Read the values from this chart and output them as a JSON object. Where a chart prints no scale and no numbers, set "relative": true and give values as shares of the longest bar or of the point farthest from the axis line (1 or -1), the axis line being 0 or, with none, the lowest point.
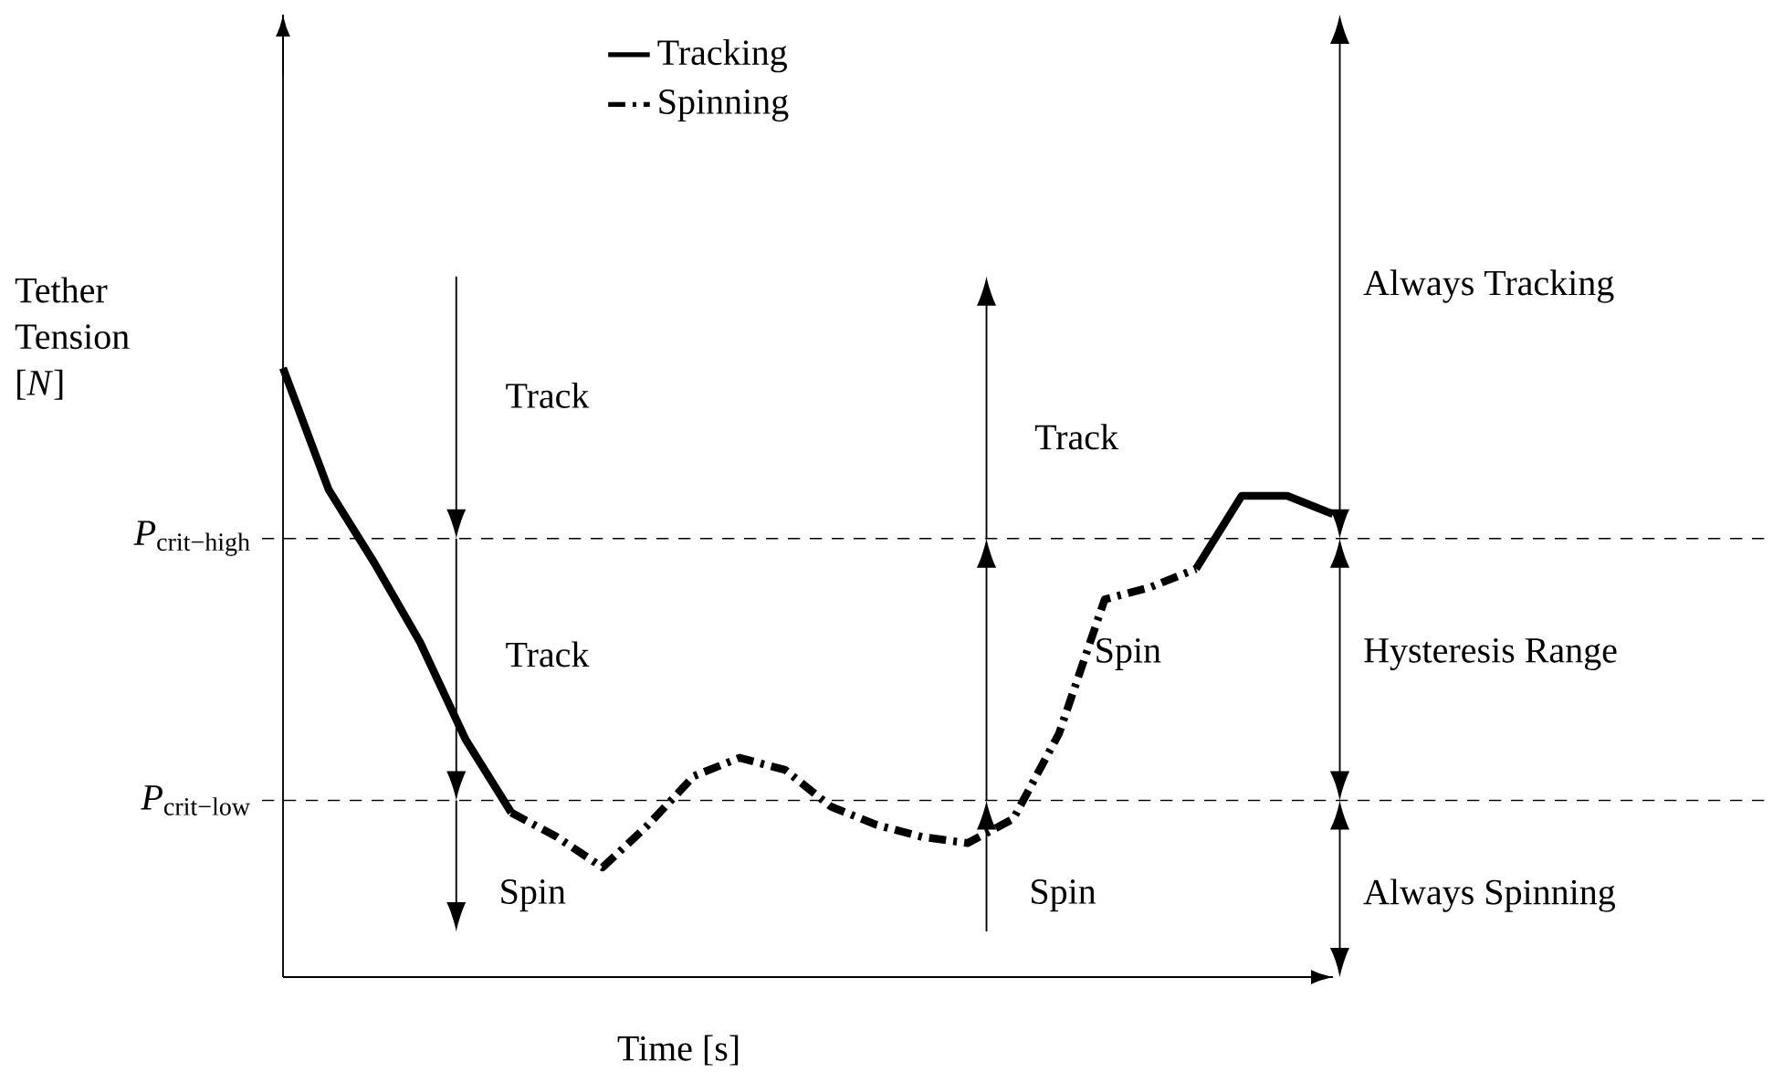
{
  "chart_data": {
    "type": "line",
    "relative": true,
    "xlabel": "Time [s]",
    "ylabel": "Tether Tension [*N*]",
    "legend": "top",
    "marker": "none",
    "categories": [
      null,
      null,
      null,
      null,
      null,
      null,
      null,
      null,
      null,
      null,
      null,
      null,
      null,
      null,
      null,
      null,
      null,
      null,
      null,
      null,
      null,
      null,
      null,
      null
    ],
    "series": [
      {
        "name": "Tracking",
        "color": "#000000",
        "line_style": "solid",
        "values": [
          1.0,
          0.8,
          0.68,
          0.55,
          0.39,
          0.27,
          null,
          null,
          null,
          null,
          null,
          null,
          null,
          null,
          null,
          null,
          null,
          null,
          null,
          null,
          0.67,
          0.79,
          0.79,
          0.76
        ]
      },
      {
        "name": "Spinning",
        "color": "#000000",
        "line_style": "dashdot",
        "values": [
          null,
          null,
          null,
          null,
          null,
          0.27,
          0.23,
          0.18,
          0.25,
          0.33,
          0.36,
          0.34,
          0.28,
          0.25,
          0.23,
          0.22,
          0.26,
          0.4,
          0.62,
          0.64,
          0.67,
          null,
          null,
          null
        ]
      }
    ],
    "ref_lines": [
      {
        "axis": "y",
        "value": 0.72,
        "label": "*P*$_{crit−high}$",
        "line_style": "dashed"
      },
      {
        "axis": "y",
        "value": 0.29,
        "label": "*P*$_{crit−low}$",
        "line_style": "dashed"
      }
    ],
    "annotations": [
      "Track",
      "Track",
      "Spin",
      "Track",
      "Spin",
      "Spin",
      "Always Tracking",
      "Hysteresis Range",
      "Always Spinning"
    ]
  }
}
